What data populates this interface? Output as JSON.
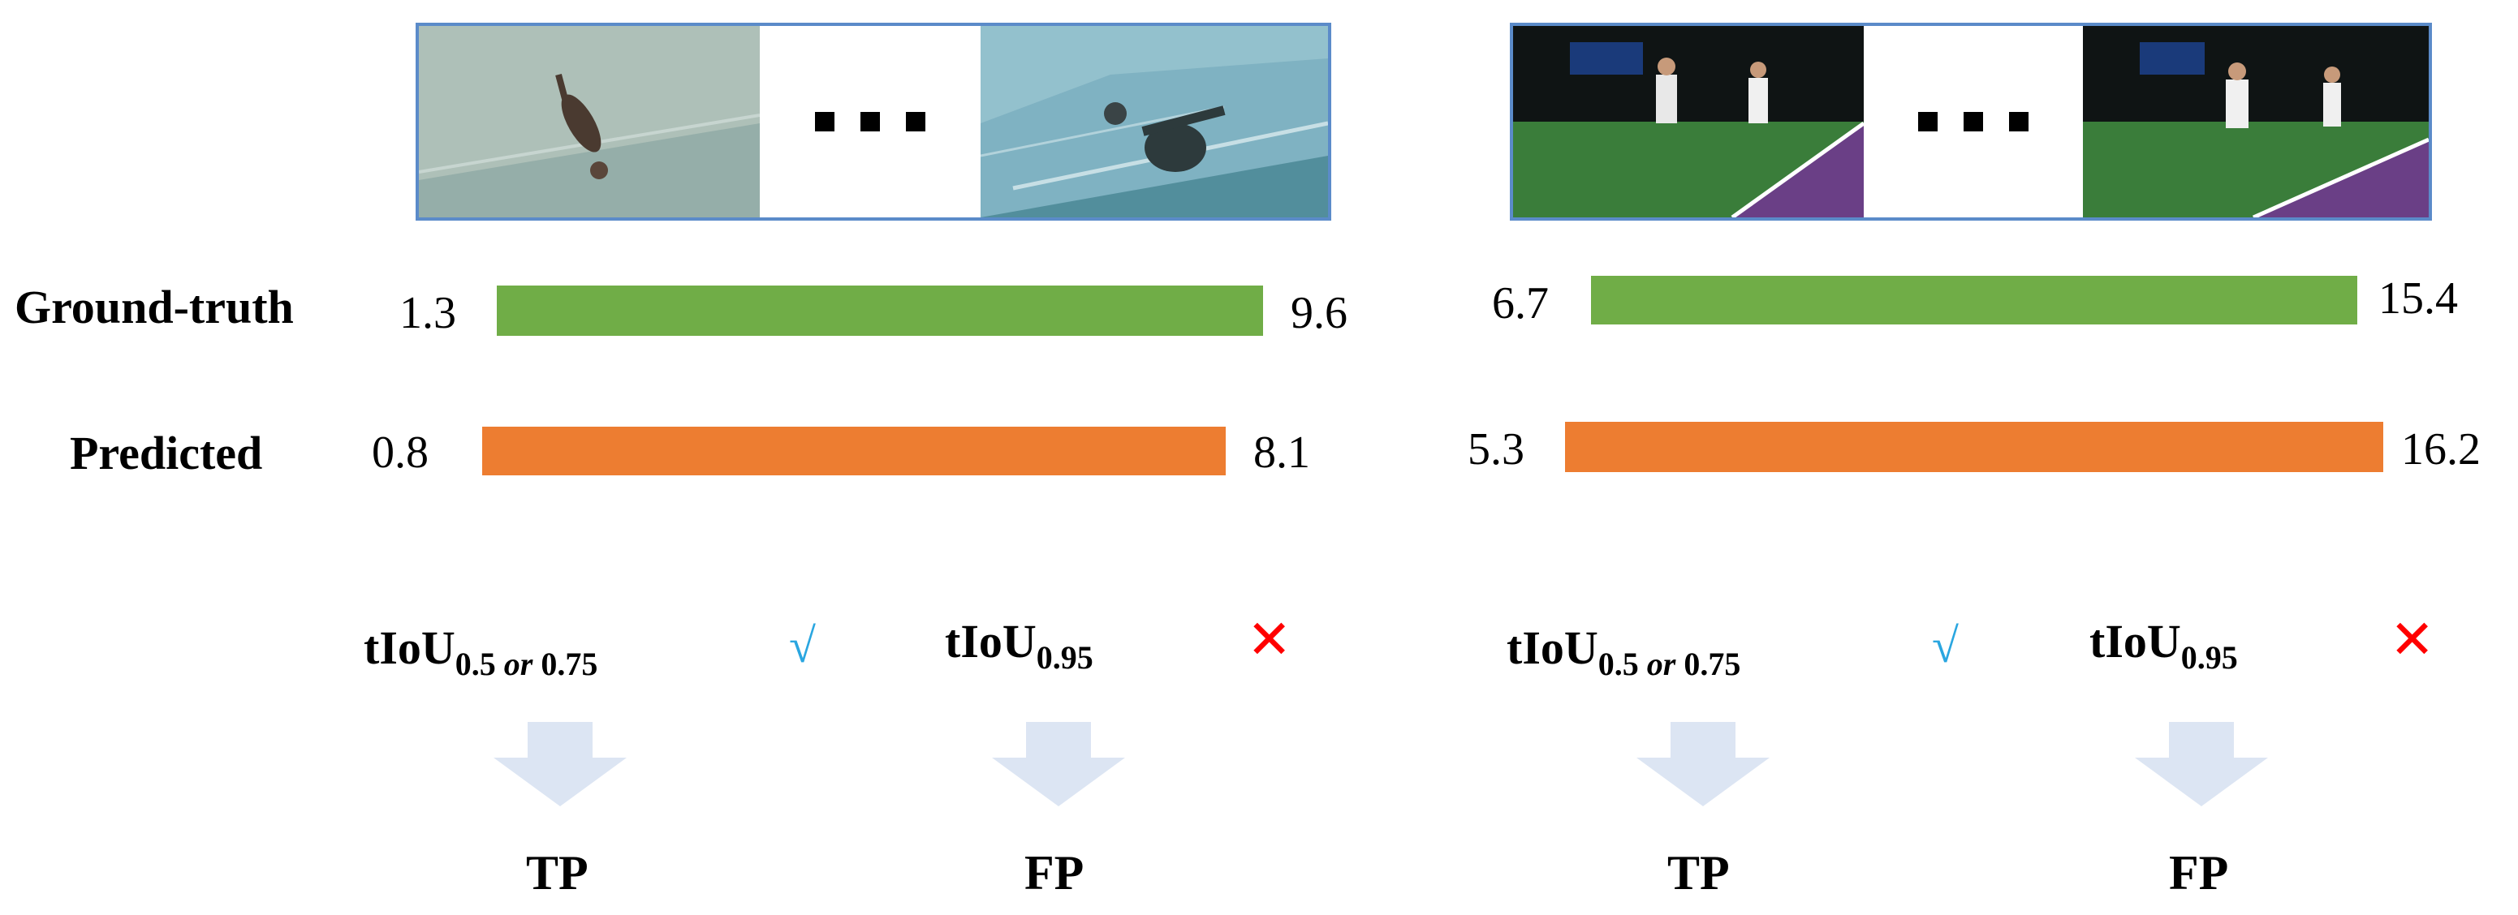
{
  "rows": {
    "ground_truth": "Ground-truth",
    "predicted": "Predicted"
  },
  "colors": {
    "ground_truth_bar": "#70ad47",
    "predicted_bar": "#ed7d31",
    "check": "#2aa6e0",
    "cross": "#ff0000",
    "arrow": "#dce5f3",
    "strip_border": "#5b8bc9"
  },
  "examples": [
    {
      "scene": "diving",
      "ground_truth": {
        "start": "1.3",
        "end": "9.6"
      },
      "predicted": {
        "start": "0.8",
        "end": "8.1"
      },
      "metric_loose": {
        "base": "tIoU",
        "sub_a": "0.5",
        "sub_or": "or",
        "sub_b": "0.75",
        "mark": "√"
      },
      "metric_strict": {
        "base": "tIoU",
        "sub": "0.95",
        "mark": "✕"
      },
      "verdict_loose": "TP",
      "verdict_strict": "FP"
    },
    {
      "scene": "tennis",
      "ground_truth": {
        "start": "6.7",
        "end": "15.4"
      },
      "predicted": {
        "start": "5.3",
        "end": "16.2"
      },
      "metric_loose": {
        "base": "tIoU",
        "sub_a": "0.5",
        "sub_or": "or",
        "sub_b": "0.75",
        "mark": "√"
      },
      "metric_strict": {
        "base": "tIoU",
        "sub": "0.95",
        "mark": "✕"
      },
      "verdict_loose": "TP",
      "verdict_strict": "FP"
    }
  ]
}
